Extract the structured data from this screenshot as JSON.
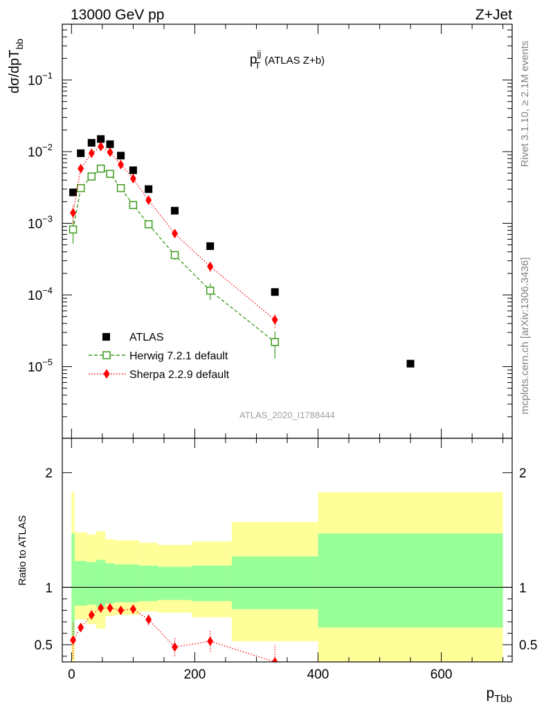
{
  "header": {
    "left": "13000 GeV pp",
    "right": "Z+Jet"
  },
  "side_labels": {
    "rivet": "Rivet 3.1.10, ≥ 2.1M events",
    "mcplots": "mcplots.cern.ch [arXiv:1306.3436]"
  },
  "chart_data": [
    {
      "type": "scatter",
      "title_main": "p",
      "title_sup": "jj",
      "title_sub": "T",
      "title_rest": "(ATLAS Z+b)",
      "ylabel_main": "dσ/dpT",
      "ylabel_sub": "bb",
      "analysis_label": "ATLAS_2020_I1788444",
      "yscale": "log",
      "xlim": [
        -15,
        715
      ],
      "ylim": [
        1e-06,
        0.6
      ],
      "y_tick_labels": [
        {
          "value": 1e-05,
          "base": "10",
          "exp": "−5"
        },
        {
          "value": 0.0001,
          "base": "10",
          "exp": "−4"
        },
        {
          "value": 0.001,
          "base": "10",
          "exp": "−3"
        },
        {
          "value": 0.01,
          "base": "10",
          "exp": "−2"
        },
        {
          "value": 0.1,
          "base": "10",
          "exp": "−1"
        }
      ],
      "legend": [
        {
          "label": "ATLAS",
          "marker": "square-filled",
          "color": "#000000"
        },
        {
          "label": "Herwig 7.2.1 default",
          "marker": "square-open",
          "color": "#3a9a19"
        },
        {
          "label": "Sherpa 2.2.9 default",
          "marker": "diamond",
          "color": "#ff0000"
        }
      ],
      "series": [
        {
          "name": "ATLAS",
          "color": "#000000",
          "x": [
            2.5,
            15,
            32.5,
            47.5,
            62.5,
            80,
            100,
            125,
            167.5,
            225,
            330,
            550
          ],
          "y": [
            0.0027,
            0.0095,
            0.0133,
            0.015,
            0.0127,
            0.0088,
            0.0055,
            0.003,
            0.0015,
            0.00048,
            0.00011,
            1.1e-05
          ]
        },
        {
          "name": "Herwig 7.2.1 default",
          "color": "#3a9a19",
          "x": [
            2.5,
            15,
            32.5,
            47.5,
            62.5,
            80,
            100,
            125,
            167.5,
            225,
            330
          ],
          "y": [
            0.00082,
            0.0031,
            0.0045,
            0.0058,
            0.0049,
            0.0031,
            0.0018,
            0.00097,
            0.00036,
            0.000115,
            2.2e-05
          ],
          "err": [
            0.0003,
            0.0003,
            0.0003,
            0.0003,
            0.0003,
            0.0002,
            0.00012,
            8e-05,
            5e-05,
            3e-05,
            9e-06
          ]
        },
        {
          "name": "Sherpa 2.2.9 default",
          "color": "#ff0000",
          "x": [
            2.5,
            15,
            32.5,
            47.5,
            62.5,
            80,
            100,
            125,
            167.5,
            225,
            330
          ],
          "y": [
            0.0014,
            0.0058,
            0.0095,
            0.0118,
            0.0098,
            0.0066,
            0.0042,
            0.0021,
            0.00072,
            0.00025,
            4.5e-05
          ],
          "err": [
            0.0004,
            0.0004,
            0.0004,
            0.0004,
            0.0004,
            0.0003,
            0.0002,
            0.00012,
            6e-05,
            4e-05,
            1e-05
          ]
        }
      ]
    },
    {
      "type": "scatter",
      "ylabel": "Ratio to ATLAS",
      "xlabel_main": "p",
      "xlabel_sub": "Tbb",
      "xlim": [
        -15,
        715
      ],
      "ylim": [
        0.35,
        2.3
      ],
      "reference_line": 1,
      "x_tick_labels": [
        "0",
        "200",
        "400",
        "600"
      ],
      "x_tick_values": [
        0,
        200,
        400,
        600
      ],
      "y_tick_labels": [
        "0.5",
        "1",
        "2"
      ],
      "y_tick_values": [
        0.5,
        1,
        2
      ],
      "bands": [
        {
          "x0": 0,
          "x1": 5,
          "yellow": [
            0.3,
            1.83
          ],
          "green": [
            0.58,
            1.47
          ]
        },
        {
          "x0": 5,
          "x1": 25,
          "yellow": [
            0.72,
            1.48
          ],
          "green": [
            0.84,
            1.23
          ]
        },
        {
          "x0": 25,
          "x1": 40,
          "yellow": [
            0.68,
            1.46
          ],
          "green": [
            0.85,
            1.22
          ]
        },
        {
          "x0": 40,
          "x1": 55,
          "yellow": [
            0.64,
            1.49
          ],
          "green": [
            0.83,
            1.24
          ]
        },
        {
          "x0": 55,
          "x1": 70,
          "yellow": [
            0.75,
            1.42
          ],
          "green": [
            0.86,
            1.21
          ]
        },
        {
          "x0": 70,
          "x1": 90,
          "yellow": [
            0.76,
            1.41
          ],
          "green": [
            0.87,
            1.2
          ]
        },
        {
          "x0": 90,
          "x1": 110,
          "yellow": [
            0.76,
            1.41
          ],
          "green": [
            0.87,
            1.2
          ]
        },
        {
          "x0": 110,
          "x1": 140,
          "yellow": [
            0.79,
            1.39
          ],
          "green": [
            0.88,
            1.19
          ]
        },
        {
          "x0": 140,
          "x1": 195,
          "yellow": [
            0.78,
            1.37
          ],
          "green": [
            0.89,
            1.18
          ]
        },
        {
          "x0": 195,
          "x1": 260,
          "yellow": [
            0.74,
            1.4
          ],
          "green": [
            0.88,
            1.19
          ]
        },
        {
          "x0": 260,
          "x1": 400,
          "yellow": [
            0.53,
            1.57
          ],
          "green": [
            0.81,
            1.27
          ]
        },
        {
          "x0": 400,
          "x1": 700,
          "yellow": [
            0.3,
            1.83
          ],
          "green": [
            0.65,
            1.47
          ]
        }
      ],
      "series": [
        {
          "name": "Sherpa 2.2.9 default",
          "color": "#ff0000",
          "x": [
            2.5,
            15,
            32.5,
            47.5,
            62.5,
            80,
            100,
            125,
            167.5,
            225,
            330
          ],
          "y": [
            0.54,
            0.65,
            0.76,
            0.82,
            0.82,
            0.8,
            0.81,
            0.72,
            0.48,
            0.53,
            0.35
          ],
          "err": [
            0.16,
            0.04,
            0.04,
            0.04,
            0.04,
            0.04,
            0.04,
            0.05,
            0.08,
            0.09,
            0.15
          ]
        }
      ]
    }
  ]
}
